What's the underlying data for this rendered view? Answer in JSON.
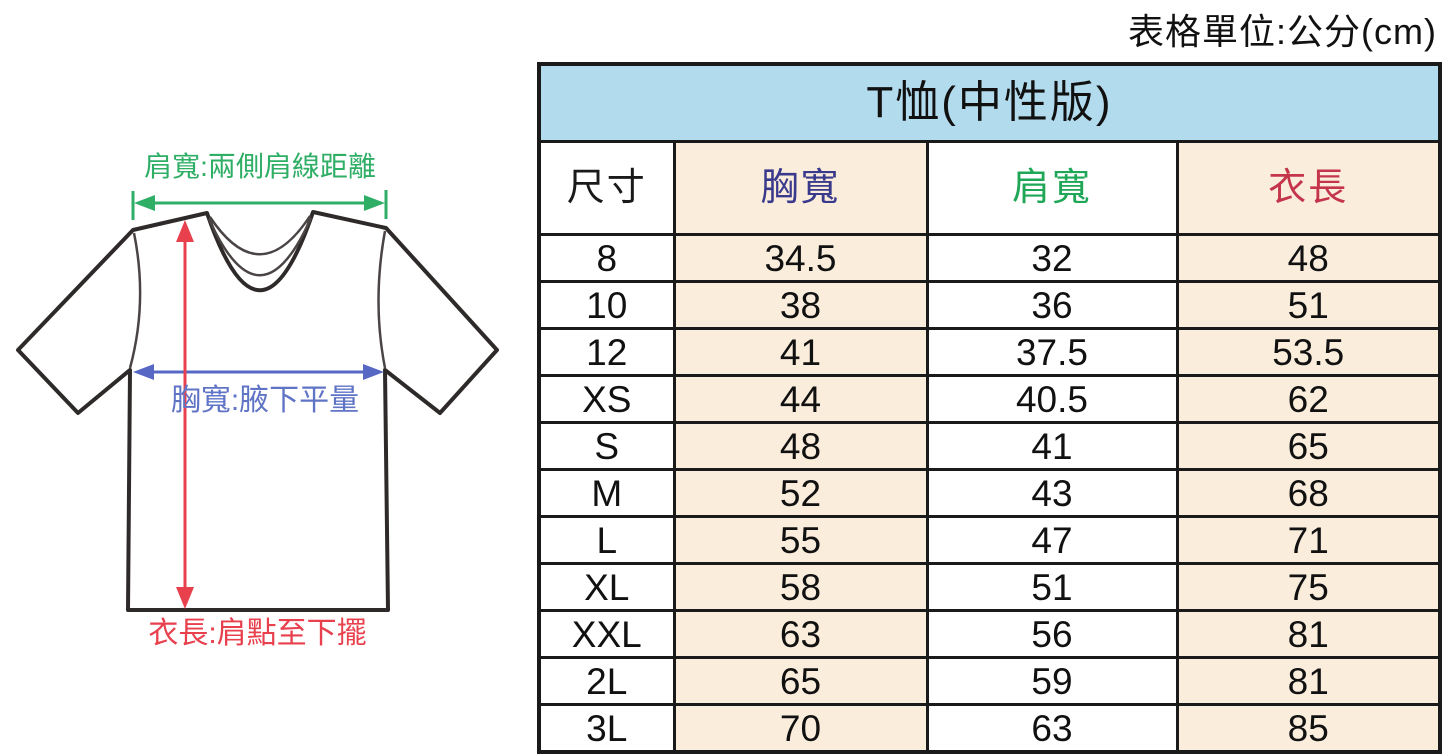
{
  "page": {
    "unit_label": "表格單位:公分(cm)"
  },
  "diagram": {
    "shoulder_label": "肩寬:兩側肩線距離",
    "chest_label": "胸寬:腋下平量",
    "length_label": "衣長:肩點至下擺",
    "colors": {
      "shoulder_arrow": "#2fae66",
      "chest_arrow": "#5668c4",
      "length_arrow": "#e8404d",
      "shirt_outline": "#2f2a2a"
    }
  },
  "table": {
    "title": "T恤(中性版)",
    "title_bg": "#b3dbee",
    "border_color": "#1a1a1a",
    "columns": [
      {
        "label": "尺寸",
        "color": "#1a1a1a",
        "bg": "#ffffff"
      },
      {
        "label": "胸寬",
        "color": "#3a3a8c",
        "bg": "#faeddc"
      },
      {
        "label": "肩寬",
        "color": "#1fa757",
        "bg": "#ffffff"
      },
      {
        "label": "衣長",
        "color": "#c4344a",
        "bg": "#faeddc"
      }
    ]
  },
  "chart_data": {
    "type": "table",
    "title": "T恤(中性版)",
    "unit": "公分(cm)",
    "columns": [
      "尺寸",
      "胸寬",
      "肩寬",
      "衣長"
    ],
    "rows": [
      [
        "8",
        "34.5",
        "32",
        "48"
      ],
      [
        "10",
        "38",
        "36",
        "51"
      ],
      [
        "12",
        "41",
        "37.5",
        "53.5"
      ],
      [
        "XS",
        "44",
        "40.5",
        "62"
      ],
      [
        "S",
        "48",
        "41",
        "65"
      ],
      [
        "M",
        "52",
        "43",
        "68"
      ],
      [
        "L",
        "55",
        "47",
        "71"
      ],
      [
        "XL",
        "58",
        "51",
        "75"
      ],
      [
        "XXL",
        "63",
        "56",
        "81"
      ],
      [
        "2L",
        "65",
        "59",
        "81"
      ],
      [
        "3L",
        "70",
        "63",
        "85"
      ]
    ]
  }
}
